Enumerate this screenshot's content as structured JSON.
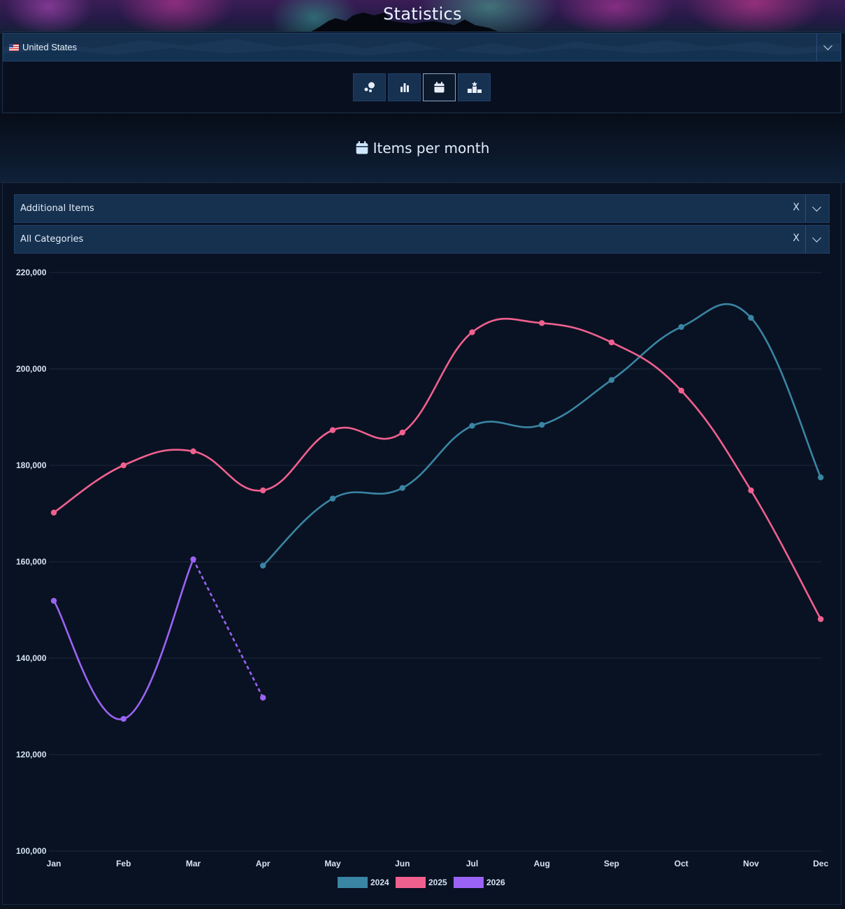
{
  "header": {
    "title": "Statistics"
  },
  "country": {
    "selected": "United States"
  },
  "tabs": [
    {
      "icon": "scatter-icon",
      "active": false
    },
    {
      "icon": "bar-chart-icon",
      "active": false
    },
    {
      "icon": "calendar-icon",
      "active": true
    },
    {
      "icon": "podium-icon",
      "active": false
    }
  ],
  "section": {
    "title": "Items per month",
    "icon": "calendar-icon"
  },
  "filters": {
    "item_type": {
      "selected": "Additional Items",
      "clear": "X"
    },
    "category": {
      "selected": "All Categories",
      "clear": "X"
    }
  },
  "colors": {
    "s2024": "#3a85a4",
    "s2025": "#f0608f",
    "s2026": "#9b63f5"
  },
  "chart_data": {
    "type": "line",
    "categories": [
      "Jan",
      "Feb",
      "Mar",
      "Apr",
      "May",
      "Jun",
      "Jul",
      "Aug",
      "Sep",
      "Oct",
      "Nov",
      "Dec"
    ],
    "ylim": [
      100000,
      220000
    ],
    "yticks": [
      100000,
      120000,
      140000,
      160000,
      180000,
      200000,
      220000
    ],
    "ytick_labels": [
      "100,000",
      "120,000",
      "140,000",
      "160,000",
      "180,000",
      "200,000",
      "220,000"
    ],
    "grid": true,
    "legend": "bottom",
    "series": [
      {
        "name": "2024",
        "color": "#3a85a4",
        "values": [
          null,
          null,
          null,
          159200,
          173100,
          175300,
          188200,
          188400,
          197700,
          208700,
          210600,
          177500
        ]
      },
      {
        "name": "2025",
        "color": "#f0608f",
        "values": [
          170200,
          180000,
          182900,
          174800,
          187300,
          186800,
          207600,
          209500,
          205500,
          195500,
          174800,
          148100
        ]
      },
      {
        "name": "2026",
        "color": "#9b63f5",
        "dashed_from_index": 2,
        "values": [
          151900,
          127400,
          160500,
          131800,
          null,
          null,
          null,
          null,
          null,
          null,
          null,
          null
        ]
      }
    ]
  }
}
